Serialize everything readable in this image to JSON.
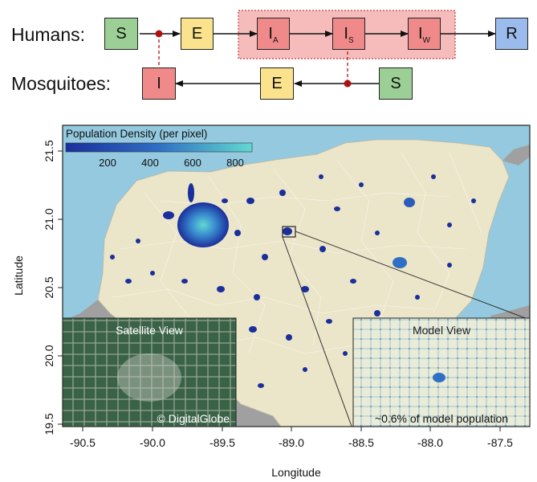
{
  "diagram": {
    "humans_label": "Humans:",
    "mosquitoes_label": "Mosquitoes:",
    "humans": {
      "s": "S",
      "e": "E",
      "ia_main": "I",
      "ia_sub": "A",
      "is_main": "I",
      "is_sub": "S",
      "iw_main": "I",
      "iw_sub": "W",
      "r": "R"
    },
    "mosquitoes": {
      "i": "I",
      "e": "E",
      "s": "S"
    }
  },
  "map": {
    "legend_title": "Population Density (per pixel)",
    "legend_ticks": [
      "200",
      "400",
      "600",
      "800"
    ],
    "x_ticks": [
      "-90.5",
      "-90.0",
      "-89.5",
      "-89.0",
      "-88.5",
      "-88.0",
      "-87.5"
    ],
    "y_ticks": [
      "21.5",
      "21.0",
      "20.5",
      "20.0",
      "19.5"
    ],
    "xlabel": "Longitude",
    "ylabel": "Latitude",
    "satellite_title": "Satellite View",
    "satellite_credit": "© DigitalGlobe",
    "model_title": "Model View",
    "model_caption": "~0.6% of model population",
    "colors": {
      "sea": "#94c9df",
      "land": "#ebe5c9",
      "other_land": "#a0a0a0",
      "density_low": "#1a2f9c",
      "density_high": "#62d9cf"
    }
  }
}
